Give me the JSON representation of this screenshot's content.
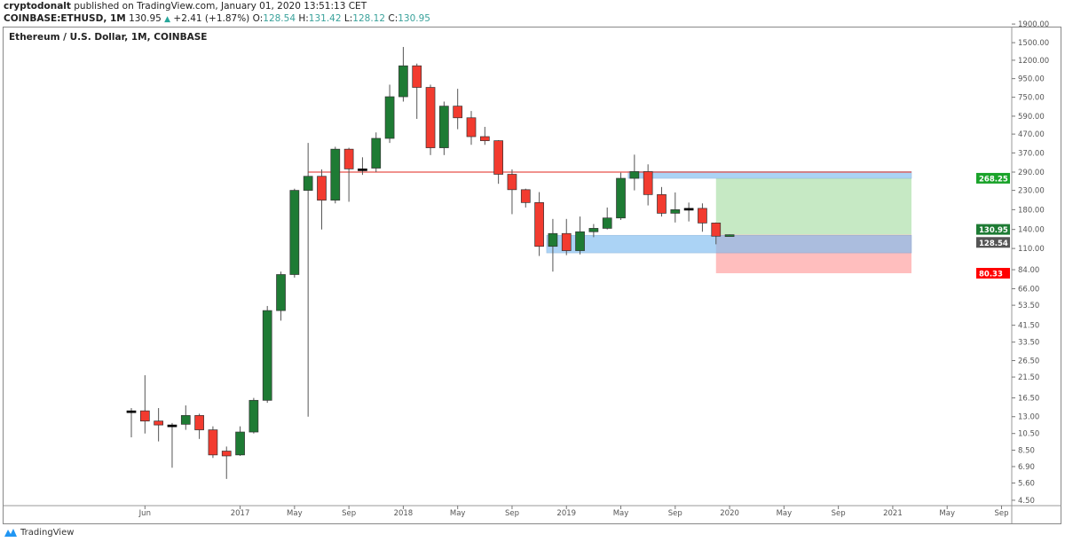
{
  "header": {
    "publisher": "cryptodonalt",
    "published_text": "published on TradingView.com, January 01, 2020 13:51:13 CET",
    "symbol": "COINBASE:ETHUSD, 1M",
    "last": "130.95",
    "change": "+2.41 (+1.87%)",
    "o_label": "O:",
    "o": "128.54",
    "h_label": "H:",
    "h": "131.42",
    "l_label": "L:",
    "l": "128.12",
    "c_label": "C:",
    "c": "130.95",
    "up_icon": "triangle-up-icon"
  },
  "chart_title": "Ethereum / U.S. Dollar, 1M, COINBASE",
  "footer": {
    "brand": "TradingView",
    "logo_icon": "tradingview-logo"
  },
  "colors": {
    "up": "#1e7b34",
    "down": "#f23b2f",
    "doji": "#000000",
    "zone": "#7fbdf0",
    "target": "#b8e3b5",
    "stop": "#ffb3b3",
    "line": "#e8524a"
  },
  "chart_data": {
    "type": "candlestick",
    "y_scale": "log",
    "ylim": [
      4.5,
      1900
    ],
    "y_ticks": [
      "1900.00",
      "1500.00",
      "1200.00",
      "950.00",
      "750.00",
      "590.00",
      "470.00",
      "370.00",
      "290.00",
      "230.00",
      "180.00",
      "140.00",
      "110.00",
      "84.00",
      "66.00",
      "53.50",
      "41.50",
      "33.50",
      "26.50",
      "21.50",
      "16.50",
      "13.00",
      "10.50",
      "8.50",
      "6.90",
      "5.60",
      "4.50"
    ],
    "x_ticks": [
      [
        "Jun",
        "2016-06"
      ],
      [
        "2017",
        "2017-01"
      ],
      [
        "May",
        "2017-05"
      ],
      [
        "Sep",
        "2017-09"
      ],
      [
        "2018",
        "2018-01"
      ],
      [
        "May",
        "2018-05"
      ],
      [
        "Sep",
        "2018-09"
      ],
      [
        "2019",
        "2019-01"
      ],
      [
        "May",
        "2019-05"
      ],
      [
        "Sep",
        "2019-09"
      ],
      [
        "2020",
        "2020-01"
      ],
      [
        "May",
        "2020-05"
      ],
      [
        "Sep",
        "2020-09"
      ],
      [
        "2021",
        "2021-01"
      ],
      [
        "May",
        "2021-05"
      ],
      [
        "Sep",
        "2021-09"
      ]
    ],
    "start_month": "2016-05",
    "candles": [
      [
        14,
        14.5,
        10,
        14
      ],
      [
        14,
        22,
        10.5,
        12.3
      ],
      [
        12.3,
        14.5,
        9.5,
        11.7
      ],
      [
        11.7,
        12,
        6.8,
        11.7
      ],
      [
        11.8,
        15,
        11,
        13.2
      ],
      [
        13.2,
        13.5,
        9.8,
        11
      ],
      [
        11,
        11.5,
        7.7,
        8
      ],
      [
        8.4,
        8.9,
        5.9,
        7.9
      ],
      [
        8,
        11.5,
        7.9,
        10.7
      ],
      [
        10.7,
        16.5,
        10.5,
        16
      ],
      [
        16,
        53,
        15.5,
        50
      ],
      [
        50,
        82,
        44,
        79
      ],
      [
        79,
        235,
        76,
        230
      ],
      [
        230,
        420,
        13,
        275
      ],
      [
        275,
        300,
        140,
        203
      ],
      [
        203,
        400,
        195,
        388
      ],
      [
        388,
        395,
        199,
        302
      ],
      [
        302,
        350,
        280,
        302
      ],
      [
        305,
        480,
        290,
        445
      ],
      [
        445,
        880,
        420,
        755
      ],
      [
        755,
        1420,
        710,
        1118
      ],
      [
        1118,
        1150,
        570,
        850
      ],
      [
        850,
        880,
        360,
        395
      ],
      [
        395,
        710,
        360,
        670
      ],
      [
        670,
        835,
        500,
        578
      ],
      [
        578,
        630,
        410,
        455
      ],
      [
        455,
        515,
        410,
        432
      ],
      [
        432,
        435,
        250,
        282
      ],
      [
        282,
        300,
        170,
        232
      ],
      [
        232,
        235,
        185,
        197
      ],
      [
        197,
        225,
        100,
        113
      ],
      [
        113,
        160,
        82,
        133
      ],
      [
        133,
        160,
        101,
        107
      ],
      [
        107,
        165,
        102,
        136
      ],
      [
        136,
        150,
        127,
        142
      ],
      [
        142,
        185,
        140,
        162
      ],
      [
        162,
        288,
        158,
        268
      ],
      [
        268,
        362,
        230,
        292
      ],
      [
        292,
        320,
        190,
        218
      ],
      [
        218,
        240,
        165,
        172
      ],
      [
        172,
        224,
        153,
        180
      ],
      [
        183,
        197,
        155,
        183
      ],
      [
        183,
        195,
        136,
        152
      ],
      [
        152,
        153,
        116,
        128.54
      ],
      [
        128.54,
        131.42,
        128.12,
        130.95
      ]
    ],
    "horizontal_line": {
      "price": 290,
      "from": "2017-06"
    },
    "zones": [
      {
        "kind": "resistance",
        "top": 292,
        "bottom": 268,
        "from": "2019-06",
        "to": "2021-03"
      },
      {
        "kind": "support",
        "top": 130,
        "bottom": 104,
        "from": "2018-12",
        "to": "2021-03"
      }
    ],
    "position": {
      "from": "2019-12",
      "to": "2021-03",
      "target": 268.25,
      "entry": 130.95,
      "stop": 80.33
    },
    "price_labels": [
      {
        "text": "268.25",
        "price": 268.25,
        "color": "#1aa32a"
      },
      {
        "text": "130.95",
        "price": 130.95,
        "color": "#1e7b34"
      },
      {
        "text": "128.54",
        "price": 128.54,
        "color": "#555555"
      },
      {
        "text": "80.33",
        "price": 80.33,
        "color": "#ff0000"
      }
    ]
  }
}
